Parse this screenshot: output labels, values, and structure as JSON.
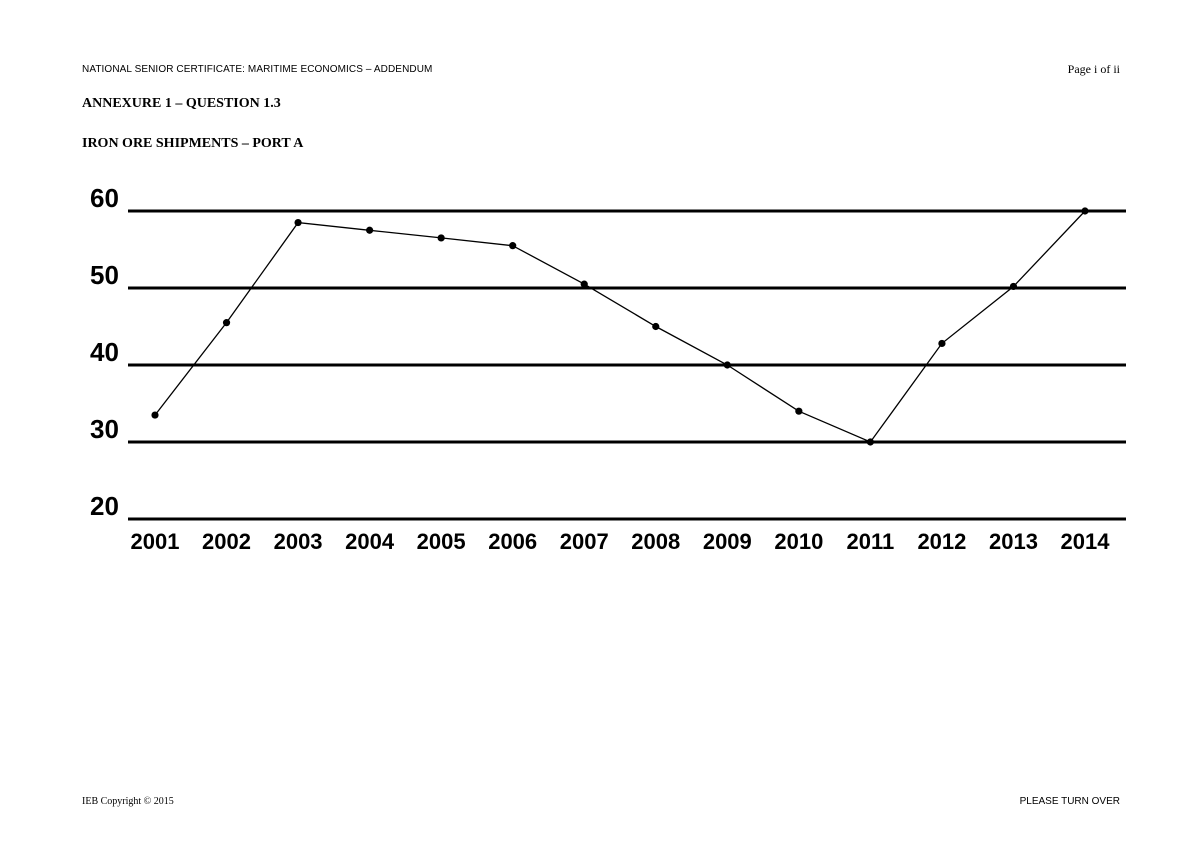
{
  "header": {
    "left_text": "NATIONAL SENIOR CERTIFICATE: MARITIME ECONOMICS – ADDENDUM",
    "page_label": "Page i of ii"
  },
  "annexure_title": "ANNEXURE 1 – QUESTION 1.3",
  "chart_data": {
    "type": "line",
    "title": "IRON ORE SHIPMENTS – PORT A",
    "xlabel": "",
    "ylabel": "",
    "categories": [
      "2001",
      "2002",
      "2003",
      "2004",
      "2005",
      "2006",
      "2007",
      "2008",
      "2009",
      "2010",
      "2011",
      "2012",
      "2013",
      "2014"
    ],
    "y_ticks": [
      "20",
      "30",
      "40",
      "50",
      "60"
    ],
    "ylim": [
      20,
      60
    ],
    "grid": true,
    "series": [
      {
        "points": [
          {
            "x": 2001,
            "y": 33.5
          },
          {
            "x": 2002,
            "y": 45.5
          },
          {
            "x": 2003,
            "y": 58.5
          },
          {
            "x": 2004,
            "y": 57.5
          },
          {
            "x": 2005,
            "y": 56.5
          },
          {
            "x": 2006,
            "y": 55.5
          },
          {
            "x": 2007,
            "y": 50.5
          },
          {
            "x": 2008,
            "y": 45
          },
          {
            "x": 2009,
            "y": 40
          },
          {
            "x": 2010,
            "y": 34
          },
          {
            "x": 2011,
            "y": 30
          },
          {
            "x": 2012,
            "y": 42.8
          },
          {
            "x": 2013,
            "y": 50.2
          },
          {
            "x": 2014,
            "y": 60
          }
        ]
      }
    ]
  },
  "footer": {
    "copyright": "IEB Copyright © 2015",
    "turn_over": "PLEASE TURN OVER"
  }
}
